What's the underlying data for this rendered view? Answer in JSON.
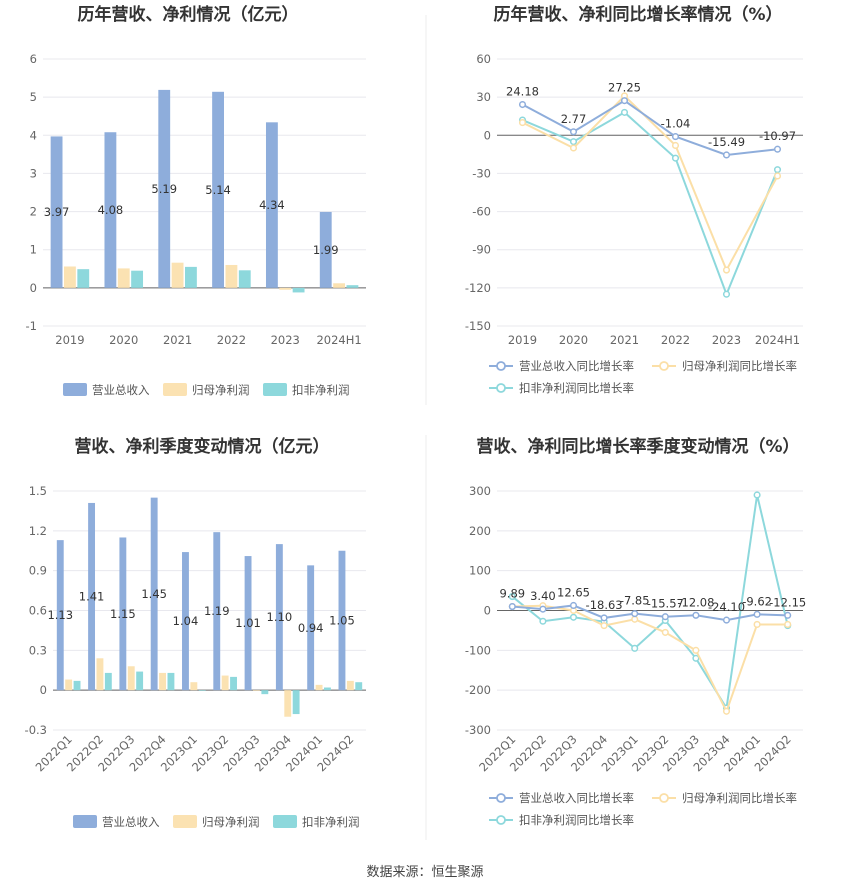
{
  "source_text": "数据来源：恒生聚源",
  "legends": {
    "bar": [
      {
        "name": "营业总收入",
        "color": "#8eaddb"
      },
      {
        "name": "归母净利润",
        "color": "#fbe2b2"
      },
      {
        "name": "扣非净利润",
        "color": "#8dd8dc"
      }
    ],
    "line": [
      {
        "name": "营业总收入同比增长率",
        "color": "#8eaddb"
      },
      {
        "name": "归母净利润同比增长率",
        "color": "#fbdfa7"
      },
      {
        "name": "扣非净利润同比增长率",
        "color": "#8dd8dc"
      }
    ]
  },
  "chart_data": [
    {
      "id": "annual-bar",
      "type": "bar",
      "title": "历年营收、净利情况（亿元）",
      "categories": [
        "2019",
        "2020",
        "2021",
        "2022",
        "2023",
        "2024H1"
      ],
      "yticks": [
        -1,
        0,
        1,
        2,
        3,
        4,
        5,
        6
      ],
      "ylim": [
        -1,
        6
      ],
      "label_series": 0,
      "series": [
        {
          "name": "营业总收入",
          "values": [
            3.97,
            4.08,
            5.19,
            5.14,
            4.34,
            1.99
          ],
          "labels": [
            "3.97",
            "4.08",
            "5.19",
            "5.14",
            "4.34",
            "1.99"
          ]
        },
        {
          "name": "归母净利润",
          "values": [
            0.56,
            0.51,
            0.66,
            0.6,
            -0.05,
            0.12
          ]
        },
        {
          "name": "扣非净利润",
          "values": [
            0.49,
            0.45,
            0.55,
            0.46,
            -0.12,
            0.07
          ]
        }
      ],
      "grid": true,
      "legend_position": "bottom"
    },
    {
      "id": "annual-line",
      "type": "line",
      "title": "历年营收、净利同比增长率情况（%）",
      "categories": [
        "2019",
        "2020",
        "2021",
        "2022",
        "2023",
        "2024H1"
      ],
      "yticks": [
        -150,
        -120,
        -90,
        -60,
        -30,
        0,
        30,
        60
      ],
      "ylim": [
        -150,
        60
      ],
      "label_series": 0,
      "series": [
        {
          "name": "营业总收入同比增长率",
          "values": [
            24.18,
            2.77,
            27.25,
            -1.04,
            -15.49,
            -10.97
          ],
          "labels": [
            "24.18",
            "2.77",
            "27.25",
            "-1.04",
            "-15.49",
            "-10.97"
          ]
        },
        {
          "name": "归母净利润同比增长率",
          "values": [
            10,
            -10,
            31,
            -8,
            -106,
            -32
          ]
        },
        {
          "name": "扣非净利润同比增长率",
          "values": [
            12,
            -5,
            18,
            -18,
            -125,
            -27
          ]
        }
      ],
      "grid": true,
      "legend_position": "bottom"
    },
    {
      "id": "quarterly-bar",
      "type": "bar",
      "title": "营收、净利季度变动情况（亿元）",
      "categories": [
        "2022Q1",
        "2022Q2",
        "2022Q3",
        "2022Q4",
        "2023Q1",
        "2023Q2",
        "2023Q3",
        "2023Q4",
        "2024Q1",
        "2024Q2"
      ],
      "yticks": [
        -0.3,
        0,
        0.3,
        0.6,
        0.9,
        1.2,
        1.5
      ],
      "ylim": [
        -0.3,
        1.5
      ],
      "label_series": 0,
      "series": [
        {
          "name": "营业总收入",
          "values": [
            1.13,
            1.41,
            1.15,
            1.45,
            1.04,
            1.19,
            1.01,
            1.1,
            0.94,
            1.05
          ],
          "labels": [
            "1.13",
            "1.41",
            "1.15",
            "1.45",
            "1.04",
            "1.19",
            "1.01",
            "1.10",
            "0.94",
            "1.05"
          ]
        },
        {
          "name": "归母净利润",
          "values": [
            0.08,
            0.24,
            0.18,
            0.13,
            0.06,
            0.11,
            0.0,
            -0.2,
            0.04,
            0.07
          ]
        },
        {
          "name": "扣非净利润",
          "values": [
            0.07,
            0.13,
            0.14,
            0.13,
            0.0,
            0.1,
            -0.03,
            -0.18,
            0.02,
            0.06
          ]
        }
      ],
      "grid": true,
      "legend_position": "bottom"
    },
    {
      "id": "quarterly-line",
      "type": "line",
      "title": "营收、净利同比增长率季度变动情况（%）",
      "categories": [
        "2022Q1",
        "2022Q2",
        "2022Q3",
        "2022Q4",
        "2023Q1",
        "2023Q2",
        "2023Q3",
        "2023Q4",
        "2024Q1",
        "2024Q2"
      ],
      "yticks": [
        -300,
        -200,
        -100,
        0,
        100,
        200,
        300
      ],
      "ylim": [
        -300,
        300
      ],
      "label_series": 0,
      "series": [
        {
          "name": "营业总收入同比增长率",
          "values": [
            9.89,
            3.4,
            12.65,
            -18.63,
            -7.85,
            -15.57,
            -12.08,
            -24.1,
            -9.62,
            -12.15
          ],
          "labels": [
            "9.89",
            "3.40",
            "12.65",
            "-18.63",
            "-7.85",
            "-15.57",
            "-12.08",
            "-24.10",
            "-9.62",
            "-12.15"
          ]
        },
        {
          "name": "归母净利润同比增长率",
          "values": [
            10,
            12,
            0,
            -38,
            -22,
            -55,
            -100,
            -253,
            -35,
            -35
          ]
        },
        {
          "name": "扣非净利润同比增长率",
          "values": [
            35,
            -27,
            -17,
            -28,
            -95,
            -25,
            -120,
            -245,
            290,
            -38
          ]
        }
      ],
      "grid": true,
      "legend_position": "bottom"
    }
  ]
}
